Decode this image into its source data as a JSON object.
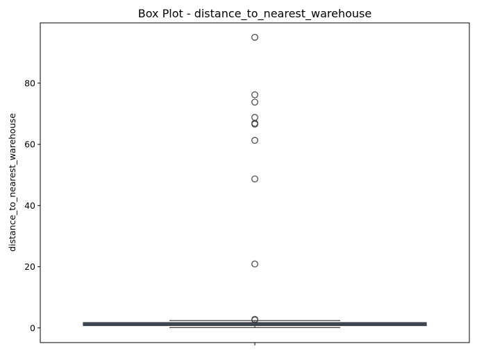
{
  "chart_data": {
    "type": "box",
    "title": "Box Plot - distance_to_nearest_warehouse",
    "xlabel": "",
    "ylabel": "distance_to_nearest_warehouse",
    "ylim": [
      -4.8,
      99.7
    ],
    "yticks": [
      0,
      20,
      40,
      60,
      80
    ],
    "grid": false,
    "box": {
      "whisker_low": 0.1,
      "q1": 0.75,
      "median": 1.2,
      "q3": 1.75,
      "whisker_high": 2.4
    },
    "outliers": [
      95.0,
      76.2,
      73.8,
      68.8,
      66.9,
      66.6,
      61.3,
      48.7,
      20.9,
      2.8,
      2.6
    ]
  },
  "colors": {
    "box_fill": "#3a4d6b",
    "box_edge": "#3f3f3f",
    "outlier_edge": "#3f3f3f"
  }
}
